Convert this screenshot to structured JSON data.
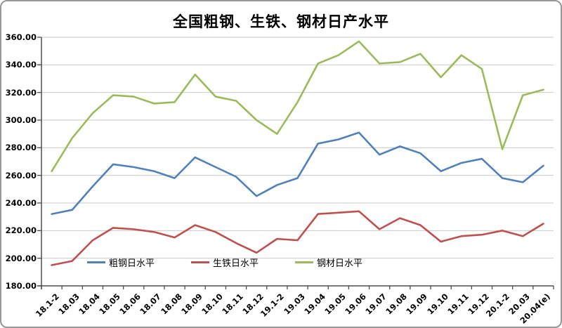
{
  "chart_data": {
    "type": "line",
    "title": "全国粗钢、生铁、钢材日产水平",
    "categories": [
      "18.1-2",
      "18.03",
      "18.04",
      "18.05",
      "18.06",
      "18.07",
      "18.08",
      "18.09",
      "18.10",
      "18.11",
      "18.12",
      "19.1-2",
      "19.03",
      "19.04",
      "19.05",
      "19.06",
      "19.07",
      "19.08",
      "19.09",
      "19.10",
      "19.11",
      "19.12",
      "20.1-2",
      "20.03",
      "20.04(e)"
    ],
    "series": [
      {
        "name": "粗钢日水平",
        "color": "#4F81BD",
        "values": [
          232,
          235,
          252,
          268,
          266,
          263,
          258,
          273,
          266,
          259,
          245,
          253,
          258,
          283,
          286,
          291,
          275,
          281,
          276,
          263,
          269,
          272,
          258,
          255,
          267
        ]
      },
      {
        "name": "生铁日水平",
        "color": "#C0504D",
        "values": [
          195,
          198,
          213,
          222,
          221,
          219,
          215,
          224,
          219,
          211,
          204,
          214,
          213,
          232,
          233,
          234,
          221,
          229,
          224,
          212,
          216,
          217,
          220,
          216,
          225
        ]
      },
      {
        "name": "钢材日水平",
        "color": "#9BBB59",
        "values": [
          263,
          287,
          305,
          318,
          317,
          312,
          313,
          333,
          317,
          314,
          300,
          290,
          313,
          341,
          347,
          357,
          341,
          342,
          348,
          331,
          347,
          337,
          279,
          318,
          322
        ]
      }
    ],
    "ylim": [
      180,
      360
    ],
    "ytick_step": 20,
    "ytick_labels": [
      "180.00",
      "200.00",
      "220.00",
      "240.00",
      "260.00",
      "280.00",
      "300.00",
      "320.00",
      "340.00",
      "360.00"
    ],
    "xlabel": "",
    "ylabel": "",
    "grid": "horizontal",
    "legend_position": "bottom-inside",
    "colors": {
      "gridline": "#C9C9C9",
      "axis": "#4D4D4D",
      "text": "#000000",
      "background": "#FFFFFF"
    }
  }
}
